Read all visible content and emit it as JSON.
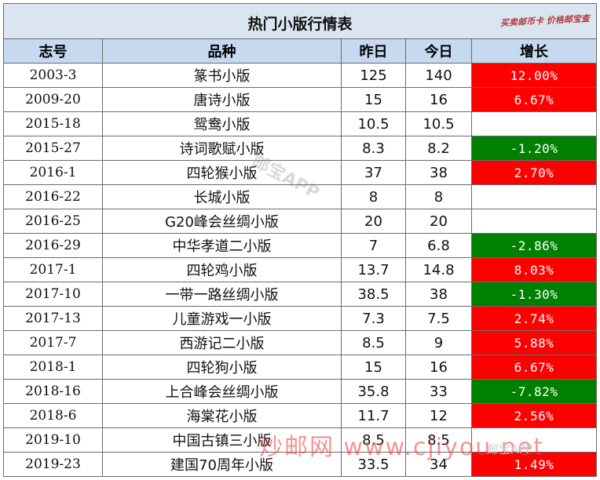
{
  "title": "热门小版行情表",
  "corner_note": "买卖邮币卡 价格邮宝查",
  "headers": [
    "志号",
    "品种",
    "昨日",
    "今日",
    "增长"
  ],
  "rows": [
    {
      "id": "2003-3",
      "name": "篆书小版",
      "yesterday": "125",
      "today": "140",
      "change": "12.00%",
      "trend": "up"
    },
    {
      "id": "2009-20",
      "name": "唐诗小版",
      "yesterday": "15",
      "today": "16",
      "change": "6.67%",
      "trend": "up"
    },
    {
      "id": "2015-18",
      "name": "鸳鸯小版",
      "yesterday": "10.5",
      "today": "10.5",
      "change": "",
      "trend": "flat"
    },
    {
      "id": "2015-27",
      "name": "诗词歌赋小版",
      "yesterday": "8.3",
      "today": "8.2",
      "change": "-1.20%",
      "trend": "down"
    },
    {
      "id": "2016-1",
      "name": "四轮猴小版",
      "yesterday": "37",
      "today": "38",
      "change": "2.70%",
      "trend": "up"
    },
    {
      "id": "2016-22",
      "name": "长城小版",
      "yesterday": "8",
      "today": "8",
      "change": "",
      "trend": "flat"
    },
    {
      "id": "2016-25",
      "name": "G20峰会丝绸小版",
      "yesterday": "20",
      "today": "20",
      "change": "",
      "trend": "flat"
    },
    {
      "id": "2016-29",
      "name": "中华孝道二小版",
      "yesterday": "7",
      "today": "6.8",
      "change": "-2.86%",
      "trend": "down"
    },
    {
      "id": "2017-1",
      "name": "四轮鸡小版",
      "yesterday": "13.7",
      "today": "14.8",
      "change": "8.03%",
      "trend": "up"
    },
    {
      "id": "2017-10",
      "name": "一带一路丝绸小版",
      "yesterday": "38.5",
      "today": "38",
      "change": "-1.30%",
      "trend": "down"
    },
    {
      "id": "2017-13",
      "name": "儿童游戏一小版",
      "yesterday": "7.3",
      "today": "7.5",
      "change": "2.74%",
      "trend": "up"
    },
    {
      "id": "2017-7",
      "name": "西游记二小版",
      "yesterday": "8.5",
      "today": "9",
      "change": "5.88%",
      "trend": "up"
    },
    {
      "id": "2018-1",
      "name": "四轮狗小版",
      "yesterday": "15",
      "today": "16",
      "change": "6.67%",
      "trend": "up"
    },
    {
      "id": "2018-16",
      "name": "上合峰会丝绸小版",
      "yesterday": "35.8",
      "today": "33",
      "change": "-7.82%",
      "trend": "down"
    },
    {
      "id": "2018-6",
      "name": "海棠花小版",
      "yesterday": "11.7",
      "today": "12",
      "change": "2.56%",
      "trend": "up"
    },
    {
      "id": "2019-10",
      "name": "中国古镇三小版",
      "yesterday": "8.5",
      "today": "8.5",
      "change": "",
      "trend": "flat"
    },
    {
      "id": "2019-23",
      "name": "建国70周年小版",
      "yesterday": "33.5",
      "today": "34",
      "change": "1.49%",
      "trend": "up"
    }
  ],
  "watermarks": {
    "center": "邮宝APP",
    "bottom": "炒邮网 www.cjiyou.net",
    "bottom_right": "邮宝APP"
  },
  "colors": {
    "up": "#ff0000",
    "down": "#008000",
    "header_bg": "#c6d9f1",
    "title_bg": "#dbe5f1"
  }
}
